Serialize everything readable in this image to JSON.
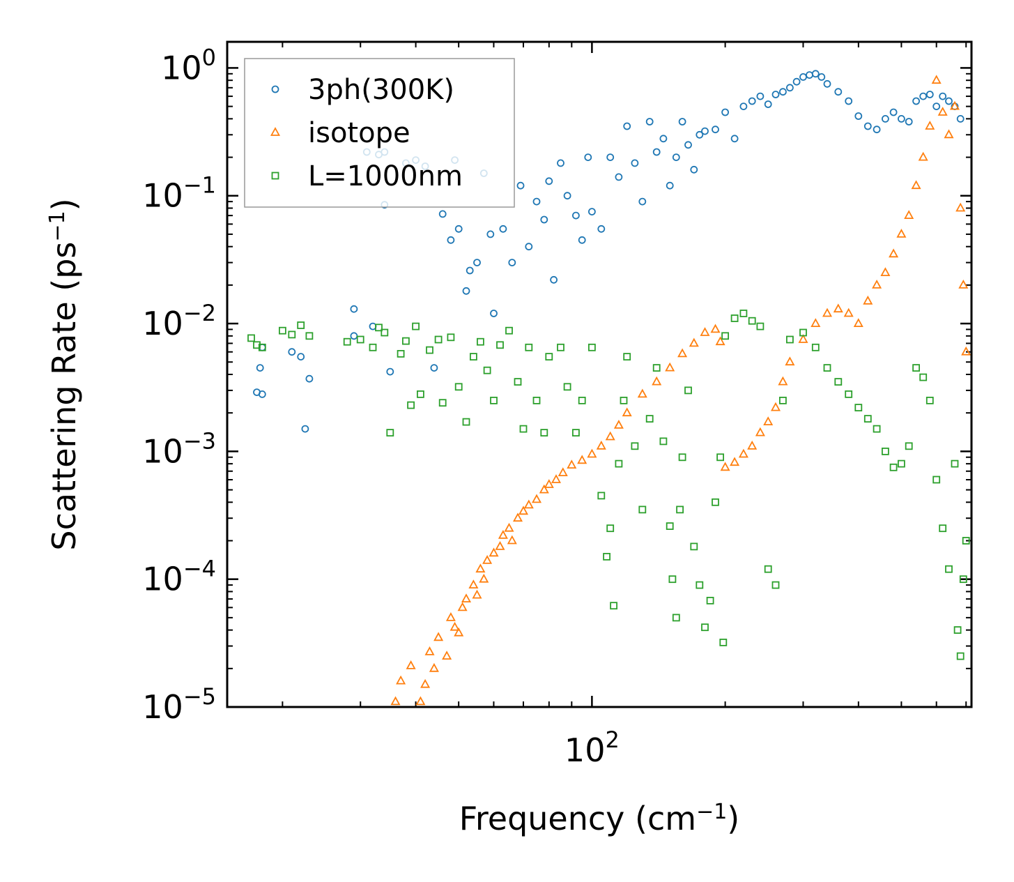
{
  "chart_data": {
    "type": "scatter",
    "title": "",
    "xlabel": {
      "base": "Frequency (cm",
      "sup": "−1",
      "tail": ")"
    },
    "ylabel": {
      "base": "Scattering Rate (ps",
      "sup": "−1",
      "tail": ")"
    },
    "xscale": "log",
    "yscale": "log",
    "xlim": [
      15,
      720
    ],
    "ylim": [
      1e-05,
      1.6
    ],
    "xticks": [
      {
        "value": 100,
        "base": "10",
        "exp": "2"
      }
    ],
    "yticks": [
      {
        "value": 1,
        "base": "10",
        "exp": "0"
      },
      {
        "value": 0.1,
        "base": "10",
        "exp": "−1"
      },
      {
        "value": 0.01,
        "base": "10",
        "exp": "−2"
      },
      {
        "value": 0.001,
        "base": "10",
        "exp": "−3"
      },
      {
        "value": 0.0001,
        "base": "10",
        "exp": "−4"
      },
      {
        "value": 1e-05,
        "base": "10",
        "exp": "−5"
      }
    ],
    "legend_position": "top-left",
    "series": [
      {
        "name": "3ph(300K)",
        "color": "#1f77b4",
        "marker": "circle",
        "points": [
          [
            17.5,
            0.0029
          ],
          [
            17.8,
            0.0045
          ],
          [
            18,
            0.0028
          ],
          [
            18,
            0.0065
          ],
          [
            21,
            0.006
          ],
          [
            22,
            0.0055
          ],
          [
            22.5,
            0.0015
          ],
          [
            23,
            0.0037
          ],
          [
            29,
            0.013
          ],
          [
            29,
            0.008
          ],
          [
            31,
            0.22
          ],
          [
            32,
            0.0095
          ],
          [
            33,
            0.21
          ],
          [
            34,
            0.22
          ],
          [
            34,
            0.085
          ],
          [
            35,
            0.0042
          ],
          [
            38,
            0.18
          ],
          [
            40,
            0.19
          ],
          [
            42,
            0.17
          ],
          [
            44,
            0.0045
          ],
          [
            46,
            0.072
          ],
          [
            48,
            0.045
          ],
          [
            49,
            0.19
          ],
          [
            50,
            0.055
          ],
          [
            52,
            0.018
          ],
          [
            53,
            0.026
          ],
          [
            55,
            0.03
          ],
          [
            57,
            0.15
          ],
          [
            59,
            0.05
          ],
          [
            60,
            0.012
          ],
          [
            63,
            0.055
          ],
          [
            66,
            0.03
          ],
          [
            69,
            0.12
          ],
          [
            72,
            0.04
          ],
          [
            75,
            0.09
          ],
          [
            78,
            0.065
          ],
          [
            80,
            0.13
          ],
          [
            82,
            0.022
          ],
          [
            85,
            0.18
          ],
          [
            88,
            0.1
          ],
          [
            92,
            0.07
          ],
          [
            95,
            0.045
          ],
          [
            98,
            0.2
          ],
          [
            100,
            0.075
          ],
          [
            105,
            0.055
          ],
          [
            110,
            0.2
          ],
          [
            115,
            0.14
          ],
          [
            120,
            0.35
          ],
          [
            125,
            0.18
          ],
          [
            130,
            0.09
          ],
          [
            135,
            0.38
          ],
          [
            140,
            0.22
          ],
          [
            145,
            0.28
          ],
          [
            150,
            0.12
          ],
          [
            155,
            0.2
          ],
          [
            160,
            0.38
          ],
          [
            165,
            0.25
          ],
          [
            170,
            0.16
          ],
          [
            175,
            0.3
          ],
          [
            180,
            0.32
          ],
          [
            190,
            0.33
          ],
          [
            200,
            0.45
          ],
          [
            210,
            0.28
          ],
          [
            220,
            0.5
          ],
          [
            230,
            0.55
          ],
          [
            240,
            0.6
          ],
          [
            250,
            0.52
          ],
          [
            260,
            0.62
          ],
          [
            270,
            0.65
          ],
          [
            280,
            0.7
          ],
          [
            290,
            0.78
          ],
          [
            300,
            0.85
          ],
          [
            310,
            0.88
          ],
          [
            320,
            0.9
          ],
          [
            330,
            0.85
          ],
          [
            340,
            0.75
          ],
          [
            360,
            0.65
          ],
          [
            380,
            0.55
          ],
          [
            400,
            0.42
          ],
          [
            420,
            0.35
          ],
          [
            440,
            0.33
          ],
          [
            460,
            0.4
          ],
          [
            480,
            0.45
          ],
          [
            500,
            0.4
          ],
          [
            520,
            0.38
          ],
          [
            540,
            0.55
          ],
          [
            560,
            0.6
          ],
          [
            580,
            0.62
          ],
          [
            600,
            0.5
          ],
          [
            620,
            0.6
          ],
          [
            640,
            0.55
          ],
          [
            660,
            0.5
          ],
          [
            680,
            0.4
          ]
        ]
      },
      {
        "name": "isotope",
        "color": "#ff7f0e",
        "marker": "triangle",
        "points": [
          [
            36,
            1.1e-05
          ],
          [
            37,
            1.6e-05
          ],
          [
            39,
            2.1e-05
          ],
          [
            41,
            1.1e-05
          ],
          [
            42,
            1.5e-05
          ],
          [
            43,
            2.7e-05
          ],
          [
            44,
            2e-05
          ],
          [
            45,
            3.5e-05
          ],
          [
            47,
            2.5e-05
          ],
          [
            48,
            5e-05
          ],
          [
            49,
            4.2e-05
          ],
          [
            50,
            3.8e-05
          ],
          [
            51,
            6e-05
          ],
          [
            52,
            7e-05
          ],
          [
            54,
            9e-05
          ],
          [
            55,
            7.5e-05
          ],
          [
            56,
            0.00012
          ],
          [
            57,
            0.0001
          ],
          [
            58,
            0.00014
          ],
          [
            60,
            0.00016
          ],
          [
            62,
            0.00018
          ],
          [
            63,
            0.00022
          ],
          [
            65,
            0.00025
          ],
          [
            66,
            0.0002
          ],
          [
            68,
            0.0003
          ],
          [
            70,
            0.00034
          ],
          [
            72,
            0.00038
          ],
          [
            75,
            0.00042
          ],
          [
            78,
            0.0005
          ],
          [
            80,
            0.00055
          ],
          [
            83,
            0.0006
          ],
          [
            86,
            0.00068
          ],
          [
            90,
            0.00078
          ],
          [
            95,
            0.00085
          ],
          [
            100,
            0.00095
          ],
          [
            105,
            0.0011
          ],
          [
            110,
            0.0013
          ],
          [
            115,
            0.0016
          ],
          [
            120,
            0.002
          ],
          [
            130,
            0.0028
          ],
          [
            140,
            0.0035
          ],
          [
            150,
            0.0045
          ],
          [
            160,
            0.0058
          ],
          [
            170,
            0.007
          ],
          [
            180,
            0.0085
          ],
          [
            190,
            0.009
          ],
          [
            195,
            0.0072
          ],
          [
            200,
            0.00075
          ],
          [
            210,
            0.00082
          ],
          [
            220,
            0.00095
          ],
          [
            230,
            0.0011
          ],
          [
            240,
            0.0014
          ],
          [
            250,
            0.0017
          ],
          [
            260,
            0.0022
          ],
          [
            270,
            0.0035
          ],
          [
            280,
            0.005
          ],
          [
            300,
            0.0075
          ],
          [
            320,
            0.01
          ],
          [
            340,
            0.012
          ],
          [
            360,
            0.013
          ],
          [
            380,
            0.012
          ],
          [
            400,
            0.01
          ],
          [
            420,
            0.015
          ],
          [
            440,
            0.02
          ],
          [
            460,
            0.025
          ],
          [
            480,
            0.035
          ],
          [
            500,
            0.05
          ],
          [
            520,
            0.07
          ],
          [
            540,
            0.12
          ],
          [
            560,
            0.2
          ],
          [
            580,
            0.35
          ],
          [
            600,
            0.8
          ],
          [
            620,
            0.45
          ],
          [
            640,
            0.3
          ],
          [
            660,
            0.5
          ],
          [
            680,
            0.08
          ],
          [
            690,
            0.02
          ],
          [
            700,
            0.006
          ]
        ]
      },
      {
        "name": "L=1000nm",
        "color": "#2ca02c",
        "marker": "square",
        "points": [
          [
            17,
            0.0077
          ],
          [
            17.5,
            0.0068
          ],
          [
            18,
            0.0065
          ],
          [
            20,
            0.0088
          ],
          [
            21,
            0.0082
          ],
          [
            22,
            0.0097
          ],
          [
            23,
            0.008
          ],
          [
            28,
            0.0072
          ],
          [
            30,
            0.0075
          ],
          [
            32,
            0.0065
          ],
          [
            33,
            0.0093
          ],
          [
            34,
            0.0085
          ],
          [
            35,
            0.0014
          ],
          [
            37,
            0.0058
          ],
          [
            38,
            0.0073
          ],
          [
            39,
            0.0023
          ],
          [
            40,
            0.0095
          ],
          [
            41,
            0.0028
          ],
          [
            43,
            0.0062
          ],
          [
            45,
            0.0075
          ],
          [
            46,
            0.0024
          ],
          [
            48,
            0.0078
          ],
          [
            50,
            0.0032
          ],
          [
            52,
            0.0017
          ],
          [
            54,
            0.0055
          ],
          [
            56,
            0.0072
          ],
          [
            58,
            0.0043
          ],
          [
            60,
            0.0025
          ],
          [
            62,
            0.0068
          ],
          [
            65,
            0.0088
          ],
          [
            68,
            0.0035
          ],
          [
            70,
            0.0015
          ],
          [
            72,
            0.0065
          ],
          [
            75,
            0.0025
          ],
          [
            78,
            0.0014
          ],
          [
            80,
            0.0055
          ],
          [
            85,
            0.0065
          ],
          [
            88,
            0.0032
          ],
          [
            92,
            0.0014
          ],
          [
            95,
            0.0025
          ],
          [
            100,
            0.0065
          ],
          [
            105,
            0.00045
          ],
          [
            108,
            0.00015
          ],
          [
            110,
            0.00025
          ],
          [
            112,
            6.2e-05
          ],
          [
            115,
            0.0008
          ],
          [
            118,
            0.0025
          ],
          [
            120,
            0.0055
          ],
          [
            125,
            0.0011
          ],
          [
            130,
            0.00035
          ],
          [
            135,
            0.0018
          ],
          [
            140,
            0.0045
          ],
          [
            145,
            0.0012
          ],
          [
            150,
            0.00026
          ],
          [
            152,
            0.0001
          ],
          [
            155,
            5e-05
          ],
          [
            158,
            0.00035
          ],
          [
            160,
            0.0009
          ],
          [
            165,
            0.003
          ],
          [
            170,
            0.00018
          ],
          [
            175,
            9e-05
          ],
          [
            180,
            4.2e-05
          ],
          [
            185,
            6.8e-05
          ],
          [
            190,
            0.0004
          ],
          [
            195,
            0.0009
          ],
          [
            198,
            3.2e-05
          ],
          [
            200,
            0.008
          ],
          [
            210,
            0.011
          ],
          [
            220,
            0.012
          ],
          [
            230,
            0.0105
          ],
          [
            240,
            0.0095
          ],
          [
            250,
            0.00012
          ],
          [
            260,
            9e-05
          ],
          [
            270,
            0.0025
          ],
          [
            280,
            0.0075
          ],
          [
            300,
            0.0085
          ],
          [
            320,
            0.0065
          ],
          [
            340,
            0.0045
          ],
          [
            360,
            0.0035
          ],
          [
            380,
            0.0028
          ],
          [
            400,
            0.0022
          ],
          [
            420,
            0.0018
          ],
          [
            440,
            0.0015
          ],
          [
            460,
            0.001
          ],
          [
            480,
            0.00075
          ],
          [
            500,
            0.0008
          ],
          [
            520,
            0.0011
          ],
          [
            540,
            0.0045
          ],
          [
            560,
            0.0038
          ],
          [
            580,
            0.0025
          ],
          [
            600,
            0.0006
          ],
          [
            620,
            0.00025
          ],
          [
            640,
            0.00012
          ],
          [
            660,
            0.0008
          ],
          [
            670,
            4e-05
          ],
          [
            680,
            2.5e-05
          ],
          [
            690,
            0.0001
          ],
          [
            700,
            0.0002
          ]
        ]
      }
    ]
  }
}
